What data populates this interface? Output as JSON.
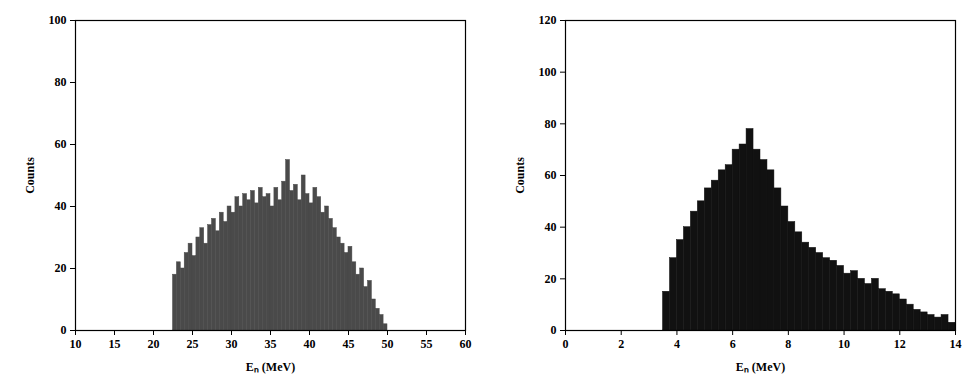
{
  "chart_data": [
    {
      "type": "histogram",
      "x_label": "Eₙ (MeV)",
      "y_label": "Counts",
      "bins": [
        22.5,
        23.0,
        23.5,
        24.0,
        24.5,
        25.0,
        25.5,
        26.0,
        26.5,
        27.0,
        27.5,
        28.0,
        28.5,
        29.0,
        29.5,
        30.0,
        30.5,
        31.0,
        31.5,
        32.0,
        32.5,
        33.0,
        33.5,
        34.0,
        34.5,
        35.0,
        35.5,
        36.0,
        36.5,
        37.0,
        37.5,
        38.0,
        38.5,
        39.0,
        39.5,
        40.0,
        40.5,
        41.0,
        41.5,
        42.0,
        42.5,
        43.0,
        43.5,
        44.0,
        44.5,
        45.0,
        45.5,
        46.0,
        46.5,
        47.0,
        47.5,
        48.0,
        48.5,
        49.0,
        49.5,
        50.0
      ],
      "counts": [
        18,
        22,
        20,
        25,
        28,
        24,
        30,
        33,
        28,
        34,
        36,
        32,
        38,
        35,
        40,
        38,
        43,
        40,
        44,
        42,
        45,
        41,
        46,
        43,
        44,
        40,
        46,
        42,
        48,
        55,
        45,
        47,
        42,
        50,
        44,
        41,
        46,
        43,
        38,
        40,
        36,
        33,
        30,
        28,
        25,
        27,
        22,
        18,
        20,
        14,
        16,
        10,
        7,
        5,
        2
      ],
      "color": "#4a4a4a",
      "xlim": [
        10,
        60
      ],
      "xticks": [
        10,
        15,
        20,
        25,
        30,
        35,
        40,
        45,
        50,
        55,
        60
      ],
      "ylim": [
        0,
        100
      ],
      "yticks": [
        0,
        20,
        40,
        60,
        80,
        100
      ]
    },
    {
      "type": "histogram",
      "x_label": "Eₙ (MeV)",
      "y_label": "Counts",
      "bins": [
        3.5,
        3.75,
        4.0,
        4.25,
        4.5,
        4.75,
        5.0,
        5.25,
        5.5,
        5.75,
        6.0,
        6.25,
        6.5,
        6.75,
        7.0,
        7.25,
        7.5,
        7.75,
        8.0,
        8.25,
        8.5,
        8.75,
        9.0,
        9.25,
        9.5,
        9.75,
        10.0,
        10.25,
        10.5,
        10.75,
        11.0,
        11.25,
        11.5,
        11.75,
        12.0,
        12.25,
        12.5,
        12.75,
        13.0,
        13.25,
        13.5,
        13.75,
        14.0
      ],
      "counts": [
        15,
        28,
        35,
        40,
        46,
        50,
        55,
        58,
        62,
        64,
        70,
        72,
        78,
        70,
        66,
        62,
        55,
        48,
        42,
        38,
        34,
        32,
        30,
        28,
        27,
        25,
        22,
        23,
        20,
        18,
        20,
        16,
        15,
        14,
        12,
        10,
        8,
        7,
        6,
        5,
        6,
        3
      ],
      "color": "#111111",
      "xlim": [
        0,
        14
      ],
      "xticks": [
        0,
        2,
        4,
        6,
        8,
        10,
        12,
        14
      ],
      "ylim": [
        0,
        120
      ],
      "yticks": [
        0,
        20,
        40,
        60,
        80,
        100,
        120
      ]
    }
  ]
}
